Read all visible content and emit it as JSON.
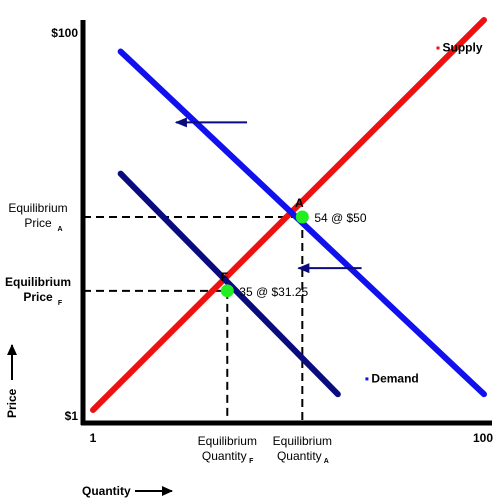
{
  "chart_data": {
    "type": "line",
    "xlabel": "Quantity",
    "ylabel": "Price",
    "x_ticks": [
      "1",
      "100"
    ],
    "y_ticks": [
      "$1",
      "$100"
    ],
    "series": [
      {
        "name": "Supply",
        "color": "#ee1111",
        "points": [
          [
            1,
            1
          ],
          [
            100,
            100
          ]
        ]
      },
      {
        "name": "Demand",
        "color": "#1111ee",
        "points": [
          [
            8,
            92
          ],
          [
            100,
            5
          ]
        ]
      },
      {
        "name": "",
        "color": "#0b0b80",
        "points": [
          [
            8,
            61
          ],
          [
            63,
            5
          ]
        ]
      }
    ],
    "equilibria": [
      {
        "letter": "A",
        "x": 54,
        "y": 50,
        "label": "54 @ $50",
        "price_label": [
          "Equilibrium",
          "Price"
        ],
        "price_sub": "A",
        "qty_label": [
          "Equilibrium",
          "Quantity"
        ],
        "qty_sub": "A"
      },
      {
        "letter": "F",
        "x": 35,
        "y": 31.25,
        "label": "35 @ $31.25",
        "price_label": [
          "Equilibrium",
          "Price"
        ],
        "price_sub": "F",
        "qty_label": [
          "Equilibrium",
          "Quantity"
        ],
        "qty_sub": "F"
      }
    ],
    "arrows": [
      {
        "from": [
          40,
          74
        ],
        "to": [
          22,
          74
        ],
        "color": "#0b0b80"
      },
      {
        "from": [
          69,
          37
        ],
        "to": [
          53,
          37
        ],
        "color": "#0b0b80"
      }
    ]
  }
}
